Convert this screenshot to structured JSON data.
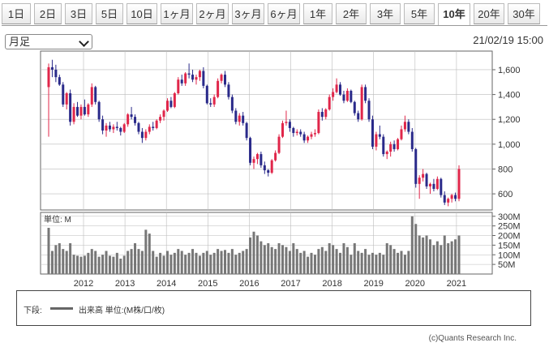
{
  "tabs": [
    {
      "label": "1日"
    },
    {
      "label": "2日"
    },
    {
      "label": "3日"
    },
    {
      "label": "5日"
    },
    {
      "label": "10日"
    },
    {
      "label": "1ヶ月"
    },
    {
      "label": "2ヶ月"
    },
    {
      "label": "3ヶ月"
    },
    {
      "label": "6ヶ月"
    },
    {
      "label": "1年"
    },
    {
      "label": "2年"
    },
    {
      "label": "3年"
    },
    {
      "label": "5年"
    },
    {
      "label": "10年"
    },
    {
      "label": "20年"
    },
    {
      "label": "30年"
    }
  ],
  "active_tab": "10年",
  "period_select": {
    "value": "月足"
  },
  "timestamp": "21/02/19 15:00",
  "legend": {
    "prefix": "下段:",
    "text": "出来高 単位:(M株/口/枚)"
  },
  "copyright": "(c)Quants Research Inc.",
  "colors": {
    "up": "#e0264a",
    "down": "#2a2a8a",
    "volume": "#777777",
    "grid": "#bbbbbb"
  },
  "chart_data": [
    {
      "type": "candlestick",
      "title": "",
      "y_ticks": [
        "1,600",
        "1,400",
        "1,200",
        "1,000",
        "800",
        "600"
      ],
      "y_tick_values": [
        1600,
        1400,
        1200,
        1000,
        800,
        600
      ],
      "ylim": [
        470,
        1750
      ],
      "x_ticks": [
        "2012",
        "2013",
        "2014",
        "2015",
        "2016",
        "2017",
        "2018",
        "2019",
        "2020",
        "2021"
      ],
      "x_range": [
        "2011-03",
        "2021-03"
      ],
      "grid": true,
      "series_note": "monthly candles (open, high, low, close) estimated from figure",
      "candles": [
        [
          1460,
          1650,
          1060,
          1620
        ],
        [
          1620,
          1680,
          1540,
          1600
        ],
        [
          1600,
          1640,
          1500,
          1540
        ],
        [
          1540,
          1560,
          1470,
          1480
        ],
        [
          1480,
          1500,
          1300,
          1320
        ],
        [
          1320,
          1420,
          1280,
          1410
        ],
        [
          1410,
          1440,
          1150,
          1180
        ],
        [
          1180,
          1330,
          1160,
          1300
        ],
        [
          1300,
          1340,
          1220,
          1230
        ],
        [
          1230,
          1320,
          1200,
          1300
        ],
        [
          1300,
          1360,
          1230,
          1240
        ],
        [
          1240,
          1330,
          1220,
          1320
        ],
        [
          1320,
          1490,
          1300,
          1460
        ],
        [
          1460,
          1470,
          1320,
          1340
        ],
        [
          1340,
          1350,
          1180,
          1200
        ],
        [
          1200,
          1230,
          1080,
          1110
        ],
        [
          1110,
          1170,
          1060,
          1150
        ],
        [
          1150,
          1180,
          1100,
          1120
        ],
        [
          1120,
          1160,
          1090,
          1140
        ],
        [
          1140,
          1180,
          1110,
          1130
        ],
        [
          1130,
          1140,
          1070,
          1100
        ],
        [
          1100,
          1170,
          1090,
          1160
        ],
        [
          1160,
          1250,
          1140,
          1240
        ],
        [
          1240,
          1300,
          1200,
          1220
        ],
        [
          1220,
          1240,
          1150,
          1170
        ],
        [
          1170,
          1180,
          1080,
          1100
        ],
        [
          1100,
          1130,
          1010,
          1050
        ],
        [
          1050,
          1120,
          1030,
          1100
        ],
        [
          1100,
          1160,
          1080,
          1140
        ],
        [
          1140,
          1180,
          1110,
          1130
        ],
        [
          1130,
          1200,
          1120,
          1190
        ],
        [
          1190,
          1240,
          1170,
          1220
        ],
        [
          1220,
          1280,
          1190,
          1270
        ],
        [
          1270,
          1370,
          1260,
          1350
        ],
        [
          1350,
          1380,
          1290,
          1300
        ],
        [
          1300,
          1420,
          1290,
          1410
        ],
        [
          1410,
          1540,
          1400,
          1520
        ],
        [
          1520,
          1560,
          1470,
          1490
        ],
        [
          1490,
          1580,
          1470,
          1570
        ],
        [
          1570,
          1650,
          1530,
          1560
        ],
        [
          1560,
          1600,
          1500,
          1520
        ],
        [
          1520,
          1560,
          1480,
          1540
        ],
        [
          1540,
          1600,
          1510,
          1590
        ],
        [
          1590,
          1620,
          1450,
          1470
        ],
        [
          1470,
          1480,
          1320,
          1330
        ],
        [
          1330,
          1370,
          1300,
          1320
        ],
        [
          1320,
          1400,
          1300,
          1380
        ],
        [
          1380,
          1530,
          1370,
          1510
        ],
        [
          1510,
          1570,
          1490,
          1560
        ],
        [
          1560,
          1590,
          1460,
          1480
        ],
        [
          1480,
          1500,
          1360,
          1380
        ],
        [
          1380,
          1400,
          1250,
          1270
        ],
        [
          1270,
          1290,
          1160,
          1180
        ],
        [
          1180,
          1250,
          1150,
          1230
        ],
        [
          1230,
          1260,
          1150,
          1170
        ],
        [
          1170,
          1180,
          1030,
          1050
        ],
        [
          1050,
          1060,
          830,
          850
        ],
        [
          850,
          900,
          800,
          880
        ],
        [
          880,
          930,
          840,
          920
        ],
        [
          920,
          940,
          810,
          830
        ],
        [
          830,
          860,
          760,
          790
        ],
        [
          790,
          800,
          740,
          770
        ],
        [
          770,
          880,
          760,
          870
        ],
        [
          870,
          950,
          860,
          930
        ],
        [
          930,
          1080,
          920,
          1060
        ],
        [
          1060,
          1190,
          1050,
          1170
        ],
        [
          1170,
          1270,
          1150,
          1180
        ],
        [
          1180,
          1200,
          1100,
          1130
        ],
        [
          1130,
          1140,
          1060,
          1090
        ],
        [
          1090,
          1120,
          1070,
          1100
        ],
        [
          1100,
          1120,
          1060,
          1080
        ],
        [
          1080,
          1100,
          1010,
          1030
        ],
        [
          1030,
          1070,
          1010,
          1060
        ],
        [
          1060,
          1100,
          1040,
          1080
        ],
        [
          1080,
          1120,
          1060,
          1090
        ],
        [
          1090,
          1280,
          1080,
          1260
        ],
        [
          1260,
          1290,
          1190,
          1220
        ],
        [
          1220,
          1290,
          1200,
          1280
        ],
        [
          1280,
          1400,
          1270,
          1380
        ],
        [
          1380,
          1450,
          1350,
          1420
        ],
        [
          1420,
          1530,
          1410,
          1480
        ],
        [
          1480,
          1500,
          1390,
          1400
        ],
        [
          1400,
          1430,
          1330,
          1350
        ],
        [
          1350,
          1450,
          1340,
          1430
        ],
        [
          1430,
          1440,
          1330,
          1340
        ],
        [
          1340,
          1350,
          1230,
          1250
        ],
        [
          1250,
          1270,
          1180,
          1200
        ],
        [
          1200,
          1480,
          1190,
          1460
        ],
        [
          1460,
          1480,
          1330,
          1350
        ],
        [
          1350,
          1370,
          1180,
          1200
        ],
        [
          1200,
          1230,
          960,
          980
        ],
        [
          980,
          1100,
          950,
          1080
        ],
        [
          1080,
          1150,
          1040,
          1060
        ],
        [
          1060,
          1080,
          900,
          920
        ],
        [
          920,
          950,
          880,
          940
        ],
        [
          940,
          1020,
          900,
          1000
        ],
        [
          1000,
          1030,
          940,
          960
        ],
        [
          960,
          1050,
          950,
          1040
        ],
        [
          1040,
          1150,
          1030,
          1120
        ],
        [
          1120,
          1230,
          1100,
          1180
        ],
        [
          1180,
          1200,
          1080,
          1100
        ],
        [
          1100,
          1130,
          940,
          960
        ],
        [
          960,
          970,
          650,
          680
        ],
        [
          680,
          750,
          560,
          730
        ],
        [
          730,
          800,
          700,
          760
        ],
        [
          760,
          770,
          640,
          660
        ],
        [
          660,
          690,
          600,
          680
        ],
        [
          680,
          720,
          620,
          640
        ],
        [
          640,
          740,
          630,
          720
        ],
        [
          720,
          730,
          570,
          590
        ],
        [
          590,
          620,
          510,
          530
        ],
        [
          530,
          570,
          500,
          560
        ],
        [
          560,
          600,
          530,
          590
        ],
        [
          590,
          610,
          540,
          560
        ],
        [
          560,
          830,
          540,
          800
        ]
      ]
    },
    {
      "type": "bar",
      "title": "",
      "label": "単位: M",
      "y_ticks": [
        "300M",
        "250M",
        "200M",
        "150M",
        "100M",
        "50M"
      ],
      "y_tick_values": [
        300,
        250,
        200,
        150,
        100,
        50
      ],
      "ylim": [
        0,
        320
      ],
      "x_ticks": [
        "2012",
        "2013",
        "2014",
        "2015",
        "2016",
        "2017",
        "2018",
        "2019",
        "2020",
        "2021"
      ],
      "values": [
        240,
        120,
        150,
        160,
        130,
        120,
        160,
        100,
        95,
        90,
        95,
        110,
        130,
        120,
        90,
        100,
        120,
        95,
        90,
        110,
        80,
        95,
        120,
        130,
        160,
        130,
        120,
        230,
        210,
        120,
        90,
        110,
        95,
        120,
        100,
        110,
        130,
        120,
        100,
        110,
        130,
        110,
        95,
        110,
        120,
        100,
        110,
        130,
        120,
        125,
        110,
        130,
        100,
        110,
        120,
        130,
        190,
        220,
        200,
        170,
        150,
        160,
        140,
        130,
        160,
        150,
        140,
        120,
        160,
        130,
        110,
        120,
        90,
        110,
        100,
        130,
        140,
        120,
        160,
        150,
        130,
        110,
        160,
        140,
        100,
        160,
        120,
        110,
        130,
        100,
        110,
        100,
        110,
        100,
        160,
        150,
        130,
        110,
        120,
        100,
        120,
        300,
        260,
        200,
        190,
        200,
        180,
        150,
        170,
        150,
        200,
        160,
        170,
        180,
        200
      ]
    }
  ]
}
